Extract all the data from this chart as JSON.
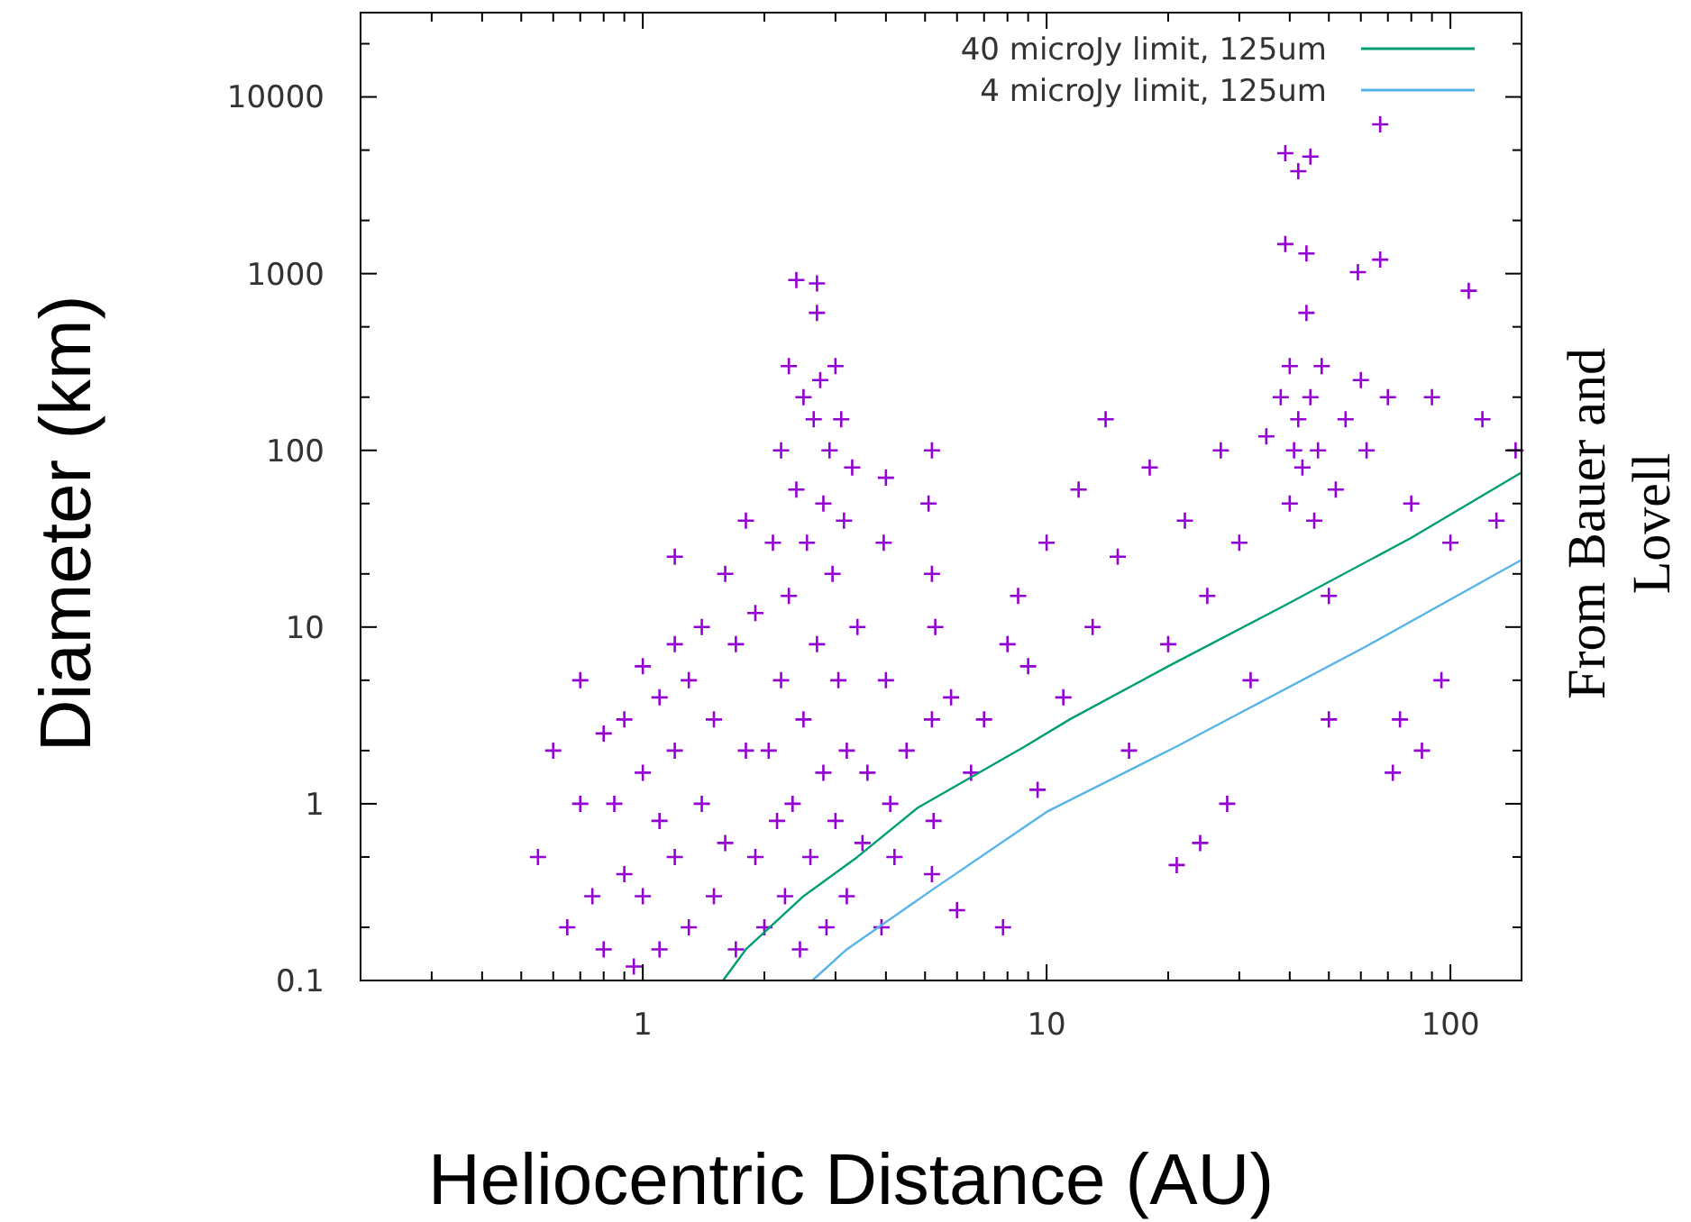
{
  "chart_data": {
    "type": "scatter",
    "xlabel": "Heliocentric Distance (AU)",
    "ylabel": "Diameter (km)",
    "annotations": [
      "From Bauer and Lovell"
    ],
    "log": "xy",
    "grid": false,
    "legend": "top right",
    "marker": "cross",
    "xlim": [
      0.2,
      150
    ],
    "ylim": [
      0.1,
      30000
    ],
    "xticks": [
      {
        "value": 0.2,
        "label": null
      },
      {
        "value": 0.3,
        "label": null
      },
      {
        "value": 0.4,
        "label": null
      },
      {
        "value": 0.5,
        "label": null
      },
      {
        "value": 0.6,
        "label": null
      },
      {
        "value": 0.7,
        "label": null
      },
      {
        "value": 0.8,
        "label": null
      },
      {
        "value": 0.9,
        "label": null
      },
      1,
      {
        "value": 2,
        "label": null
      },
      {
        "value": 3,
        "label": null
      },
      {
        "value": 4,
        "label": null
      },
      {
        "value": 5,
        "label": null
      },
      {
        "value": 6,
        "label": null
      },
      {
        "value": 7,
        "label": null
      },
      {
        "value": 8,
        "label": null
      },
      {
        "value": 9,
        "label": null
      },
      10,
      {
        "value": 20,
        "label": null
      },
      {
        "value": 30,
        "label": null
      },
      {
        "value": 40,
        "label": null
      },
      {
        "value": 50,
        "label": null
      },
      {
        "value": 60,
        "label": null
      },
      {
        "value": 70,
        "label": null
      },
      {
        "value": 80,
        "label": null
      },
      {
        "value": 90,
        "label": null
      },
      100
    ],
    "yticks": [
      0.1,
      {
        "value": 0.2,
        "label": null
      },
      {
        "value": 0.5,
        "label": null
      },
      1,
      {
        "value": 2,
        "label": null
      },
      {
        "value": 5,
        "label": null
      },
      10,
      {
        "value": 20,
        "label": null
      },
      {
        "value": 50,
        "label": null
      },
      100,
      {
        "value": 200,
        "label": null
      },
      {
        "value": 500,
        "label": null
      },
      1000,
      {
        "value": 2000,
        "label": null
      },
      {
        "value": 5000,
        "label": null
      },
      10000,
      {
        "value": 20000,
        "label": null
      }
    ],
    "series": [
      {
        "color": "#9400d3",
        "x": [
          0.55,
          0.6,
          0.65,
          0.7,
          0.7,
          0.75,
          0.8,
          0.8,
          0.85,
          0.9,
          0.9,
          0.95,
          1,
          1,
          1,
          1.1,
          1.1,
          1.1,
          1.2,
          1.2,
          1.2,
          1.2,
          1.3,
          1.3,
          1.4,
          1.4,
          1.5,
          1.5,
          1.6,
          1.6,
          1.7,
          1.7,
          1.8,
          1.8,
          1.9,
          1.9,
          2,
          2.05,
          2.1,
          2.15,
          2.2,
          2.2,
          2.25,
          2.3,
          2.3,
          2.35,
          2.4,
          2.4,
          2.45,
          2.5,
          2.5,
          2.55,
          2.6,
          2.65,
          2.7,
          2.7,
          2.7,
          2.75,
          2.8,
          2.8,
          2.85,
          2.9,
          2.95,
          3,
          3,
          3.05,
          3.1,
          3.15,
          3.2,
          3.2,
          3.3,
          3.4,
          3.5,
          3.6,
          3.9,
          3.95,
          4,
          4,
          4.1,
          4.2,
          5.1,
          5.2,
          5.2,
          5.2,
          5.25,
          5.3,
          5.2,
          4.5,
          5.8,
          6,
          6.5,
          7,
          7.8,
          8,
          8.5,
          9,
          9.5,
          10,
          11,
          12,
          13,
          14,
          15,
          16,
          18,
          20,
          21,
          22,
          24,
          25,
          27,
          28,
          30,
          32,
          35,
          38,
          39,
          39,
          40,
          40,
          41,
          42,
          42,
          43,
          44,
          44,
          45,
          45,
          46,
          47,
          48,
          50,
          50,
          52,
          55,
          59,
          60,
          62,
          67,
          67,
          70,
          72,
          75,
          80,
          85,
          90,
          95,
          100,
          111,
          120,
          130,
          145
        ],
        "values": [
          0.5,
          2,
          0.2,
          5,
          1,
          0.3,
          2.5,
          0.15,
          1,
          3,
          0.4,
          0.12,
          6,
          1.5,
          0.3,
          4,
          0.8,
          0.15,
          25,
          8,
          2,
          0.5,
          0.2,
          5,
          10,
          1,
          0.3,
          3,
          20,
          0.6,
          8,
          0.15,
          2,
          40,
          0.5,
          12,
          0.2,
          2,
          30,
          0.8,
          100,
          5,
          0.3,
          300,
          15,
          1,
          920,
          60,
          0.15,
          200,
          3,
          30,
          0.5,
          150,
          880,
          600,
          8,
          250,
          50,
          1.5,
          0.2,
          100,
          20,
          300,
          0.8,
          5,
          150,
          40,
          2,
          0.3,
          80,
          10,
          0.6,
          1.5,
          0.2,
          30,
          70,
          5,
          1,
          0.5,
          50,
          100,
          20,
          3,
          0.8,
          10,
          0.4,
          2,
          4,
          0.25,
          1.5,
          3,
          0.2,
          8,
          15,
          6,
          1.2,
          30,
          4,
          60,
          10,
          150,
          25,
          2,
          80,
          8,
          0.45,
          40,
          0.6,
          15,
          100,
          1,
          30,
          5,
          120,
          200,
          4800,
          1470,
          50,
          300,
          100,
          3800,
          150,
          80,
          1300,
          600,
          4600,
          200,
          40,
          100,
          300,
          15,
          3,
          60,
          150,
          1020,
          250,
          100,
          7000,
          1200,
          200,
          1.5,
          3,
          50,
          2,
          200,
          5,
          30,
          800,
          150,
          40,
          100
        ]
      },
      {
        "type": "line",
        "name": "40 microJy limit, 125um",
        "color": "#009e73",
        "marker": "none",
        "line_style": "solid",
        "x": [
          1.58,
          1.8,
          2.5,
          3.4,
          4.8,
          8.8,
          11.4,
          20,
          39,
          80,
          150
        ],
        "values": [
          0.1,
          0.15,
          0.3,
          0.5,
          0.95,
          2.1,
          3,
          6,
          13.3,
          32,
          75
        ]
      },
      {
        "type": "line",
        "name": "4 microJy limit, 125um",
        "color": "#56b4e9",
        "marker": "none",
        "line_style": "solid",
        "x": [
          2.63,
          3.2,
          5.2,
          10,
          20.9,
          62,
          150
        ],
        "values": [
          0.1,
          0.15,
          0.325,
          0.9,
          2.1,
          7.8,
          24
        ]
      }
    ]
  }
}
